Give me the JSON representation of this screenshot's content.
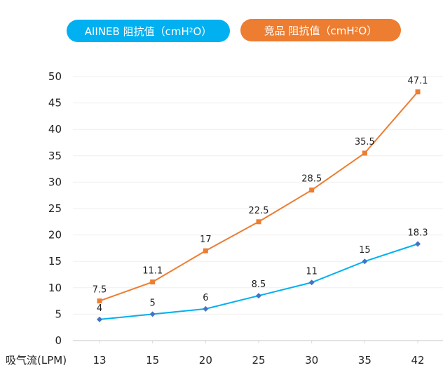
{
  "chart_data": {
    "type": "line",
    "title": "",
    "xlabel": "吸气流(LPM)",
    "ylabel": "",
    "categories": [
      "13",
      "15",
      "20",
      "25",
      "30",
      "35",
      "42"
    ],
    "ylim": [
      0,
      50
    ],
    "yticks": [
      0,
      5,
      10,
      15,
      20,
      25,
      30,
      35,
      40,
      45,
      50
    ],
    "grid": true,
    "legend_position": "top",
    "series": [
      {
        "name": "AIINEB 阻抗值（cmH2O）",
        "name_main": "AIINEB 阻抗值（cmH",
        "name_sub": "2",
        "name_tail": "O）",
        "values": [
          4,
          5,
          6,
          8.5,
          11,
          15,
          18.3
        ],
        "labels": [
          "4",
          "5",
          "6",
          "8.5",
          "11",
          "15",
          "18.3"
        ],
        "line_color": "#00B0F0",
        "marker_color": "#4472C4",
        "marker": "diamond"
      },
      {
        "name": "竞品 阻抗值（cmH2O）",
        "name_main": "竞品 阻抗值（cmH",
        "name_sub": "2",
        "name_tail": "O）",
        "values": [
          7.5,
          11.1,
          17,
          22.5,
          28.5,
          35.5,
          47.1
        ],
        "labels": [
          "7.5",
          "11.1",
          "17",
          "22.5",
          "28.5",
          "35.5",
          "47.1"
        ],
        "line_color": "#ED7D31",
        "marker_color": "#ED7D31",
        "marker": "square"
      }
    ]
  }
}
